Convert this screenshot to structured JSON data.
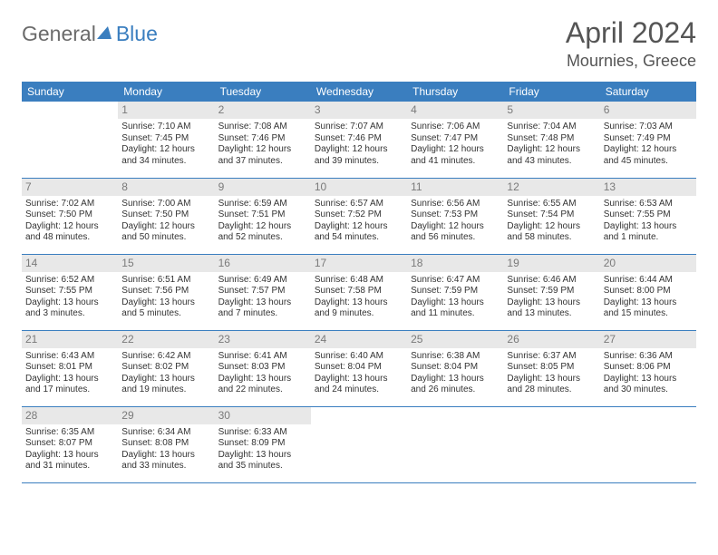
{
  "logo": {
    "general": "General",
    "blue": "Blue"
  },
  "header": {
    "month": "April 2024",
    "location": "Mournies, Greece"
  },
  "weekdays": [
    "Sunday",
    "Monday",
    "Tuesday",
    "Wednesday",
    "Thursday",
    "Friday",
    "Saturday"
  ],
  "colors": {
    "header_bg": "#3a7ebf",
    "header_fg": "#ffffff",
    "daynum_bg": "#e8e8e8",
    "daynum_fg": "#7a7a7a",
    "rule": "#3a7ebf",
    "text": "#333333",
    "logo_gray": "#6b6b6b",
    "logo_blue": "#3a7ebf"
  },
  "grid": [
    [
      {
        "day": "",
        "sunrise": "",
        "sunset": "",
        "daylight1": "",
        "daylight2": ""
      },
      {
        "day": "1",
        "sunrise": "Sunrise: 7:10 AM",
        "sunset": "Sunset: 7:45 PM",
        "daylight1": "Daylight: 12 hours",
        "daylight2": "and 34 minutes."
      },
      {
        "day": "2",
        "sunrise": "Sunrise: 7:08 AM",
        "sunset": "Sunset: 7:46 PM",
        "daylight1": "Daylight: 12 hours",
        "daylight2": "and 37 minutes."
      },
      {
        "day": "3",
        "sunrise": "Sunrise: 7:07 AM",
        "sunset": "Sunset: 7:46 PM",
        "daylight1": "Daylight: 12 hours",
        "daylight2": "and 39 minutes."
      },
      {
        "day": "4",
        "sunrise": "Sunrise: 7:06 AM",
        "sunset": "Sunset: 7:47 PM",
        "daylight1": "Daylight: 12 hours",
        "daylight2": "and 41 minutes."
      },
      {
        "day": "5",
        "sunrise": "Sunrise: 7:04 AM",
        "sunset": "Sunset: 7:48 PM",
        "daylight1": "Daylight: 12 hours",
        "daylight2": "and 43 minutes."
      },
      {
        "day": "6",
        "sunrise": "Sunrise: 7:03 AM",
        "sunset": "Sunset: 7:49 PM",
        "daylight1": "Daylight: 12 hours",
        "daylight2": "and 45 minutes."
      }
    ],
    [
      {
        "day": "7",
        "sunrise": "Sunrise: 7:02 AM",
        "sunset": "Sunset: 7:50 PM",
        "daylight1": "Daylight: 12 hours",
        "daylight2": "and 48 minutes."
      },
      {
        "day": "8",
        "sunrise": "Sunrise: 7:00 AM",
        "sunset": "Sunset: 7:50 PM",
        "daylight1": "Daylight: 12 hours",
        "daylight2": "and 50 minutes."
      },
      {
        "day": "9",
        "sunrise": "Sunrise: 6:59 AM",
        "sunset": "Sunset: 7:51 PM",
        "daylight1": "Daylight: 12 hours",
        "daylight2": "and 52 minutes."
      },
      {
        "day": "10",
        "sunrise": "Sunrise: 6:57 AM",
        "sunset": "Sunset: 7:52 PM",
        "daylight1": "Daylight: 12 hours",
        "daylight2": "and 54 minutes."
      },
      {
        "day": "11",
        "sunrise": "Sunrise: 6:56 AM",
        "sunset": "Sunset: 7:53 PM",
        "daylight1": "Daylight: 12 hours",
        "daylight2": "and 56 minutes."
      },
      {
        "day": "12",
        "sunrise": "Sunrise: 6:55 AM",
        "sunset": "Sunset: 7:54 PM",
        "daylight1": "Daylight: 12 hours",
        "daylight2": "and 58 minutes."
      },
      {
        "day": "13",
        "sunrise": "Sunrise: 6:53 AM",
        "sunset": "Sunset: 7:55 PM",
        "daylight1": "Daylight: 13 hours",
        "daylight2": "and 1 minute."
      }
    ],
    [
      {
        "day": "14",
        "sunrise": "Sunrise: 6:52 AM",
        "sunset": "Sunset: 7:55 PM",
        "daylight1": "Daylight: 13 hours",
        "daylight2": "and 3 minutes."
      },
      {
        "day": "15",
        "sunrise": "Sunrise: 6:51 AM",
        "sunset": "Sunset: 7:56 PM",
        "daylight1": "Daylight: 13 hours",
        "daylight2": "and 5 minutes."
      },
      {
        "day": "16",
        "sunrise": "Sunrise: 6:49 AM",
        "sunset": "Sunset: 7:57 PM",
        "daylight1": "Daylight: 13 hours",
        "daylight2": "and 7 minutes."
      },
      {
        "day": "17",
        "sunrise": "Sunrise: 6:48 AM",
        "sunset": "Sunset: 7:58 PM",
        "daylight1": "Daylight: 13 hours",
        "daylight2": "and 9 minutes."
      },
      {
        "day": "18",
        "sunrise": "Sunrise: 6:47 AM",
        "sunset": "Sunset: 7:59 PM",
        "daylight1": "Daylight: 13 hours",
        "daylight2": "and 11 minutes."
      },
      {
        "day": "19",
        "sunrise": "Sunrise: 6:46 AM",
        "sunset": "Sunset: 7:59 PM",
        "daylight1": "Daylight: 13 hours",
        "daylight2": "and 13 minutes."
      },
      {
        "day": "20",
        "sunrise": "Sunrise: 6:44 AM",
        "sunset": "Sunset: 8:00 PM",
        "daylight1": "Daylight: 13 hours",
        "daylight2": "and 15 minutes."
      }
    ],
    [
      {
        "day": "21",
        "sunrise": "Sunrise: 6:43 AM",
        "sunset": "Sunset: 8:01 PM",
        "daylight1": "Daylight: 13 hours",
        "daylight2": "and 17 minutes."
      },
      {
        "day": "22",
        "sunrise": "Sunrise: 6:42 AM",
        "sunset": "Sunset: 8:02 PM",
        "daylight1": "Daylight: 13 hours",
        "daylight2": "and 19 minutes."
      },
      {
        "day": "23",
        "sunrise": "Sunrise: 6:41 AM",
        "sunset": "Sunset: 8:03 PM",
        "daylight1": "Daylight: 13 hours",
        "daylight2": "and 22 minutes."
      },
      {
        "day": "24",
        "sunrise": "Sunrise: 6:40 AM",
        "sunset": "Sunset: 8:04 PM",
        "daylight1": "Daylight: 13 hours",
        "daylight2": "and 24 minutes."
      },
      {
        "day": "25",
        "sunrise": "Sunrise: 6:38 AM",
        "sunset": "Sunset: 8:04 PM",
        "daylight1": "Daylight: 13 hours",
        "daylight2": "and 26 minutes."
      },
      {
        "day": "26",
        "sunrise": "Sunrise: 6:37 AM",
        "sunset": "Sunset: 8:05 PM",
        "daylight1": "Daylight: 13 hours",
        "daylight2": "and 28 minutes."
      },
      {
        "day": "27",
        "sunrise": "Sunrise: 6:36 AM",
        "sunset": "Sunset: 8:06 PM",
        "daylight1": "Daylight: 13 hours",
        "daylight2": "and 30 minutes."
      }
    ],
    [
      {
        "day": "28",
        "sunrise": "Sunrise: 6:35 AM",
        "sunset": "Sunset: 8:07 PM",
        "daylight1": "Daylight: 13 hours",
        "daylight2": "and 31 minutes."
      },
      {
        "day": "29",
        "sunrise": "Sunrise: 6:34 AM",
        "sunset": "Sunset: 8:08 PM",
        "daylight1": "Daylight: 13 hours",
        "daylight2": "and 33 minutes."
      },
      {
        "day": "30",
        "sunrise": "Sunrise: 6:33 AM",
        "sunset": "Sunset: 8:09 PM",
        "daylight1": "Daylight: 13 hours",
        "daylight2": "and 35 minutes."
      },
      {
        "day": "",
        "sunrise": "",
        "sunset": "",
        "daylight1": "",
        "daylight2": ""
      },
      {
        "day": "",
        "sunrise": "",
        "sunset": "",
        "daylight1": "",
        "daylight2": ""
      },
      {
        "day": "",
        "sunrise": "",
        "sunset": "",
        "daylight1": "",
        "daylight2": ""
      },
      {
        "day": "",
        "sunrise": "",
        "sunset": "",
        "daylight1": "",
        "daylight2": ""
      }
    ]
  ]
}
